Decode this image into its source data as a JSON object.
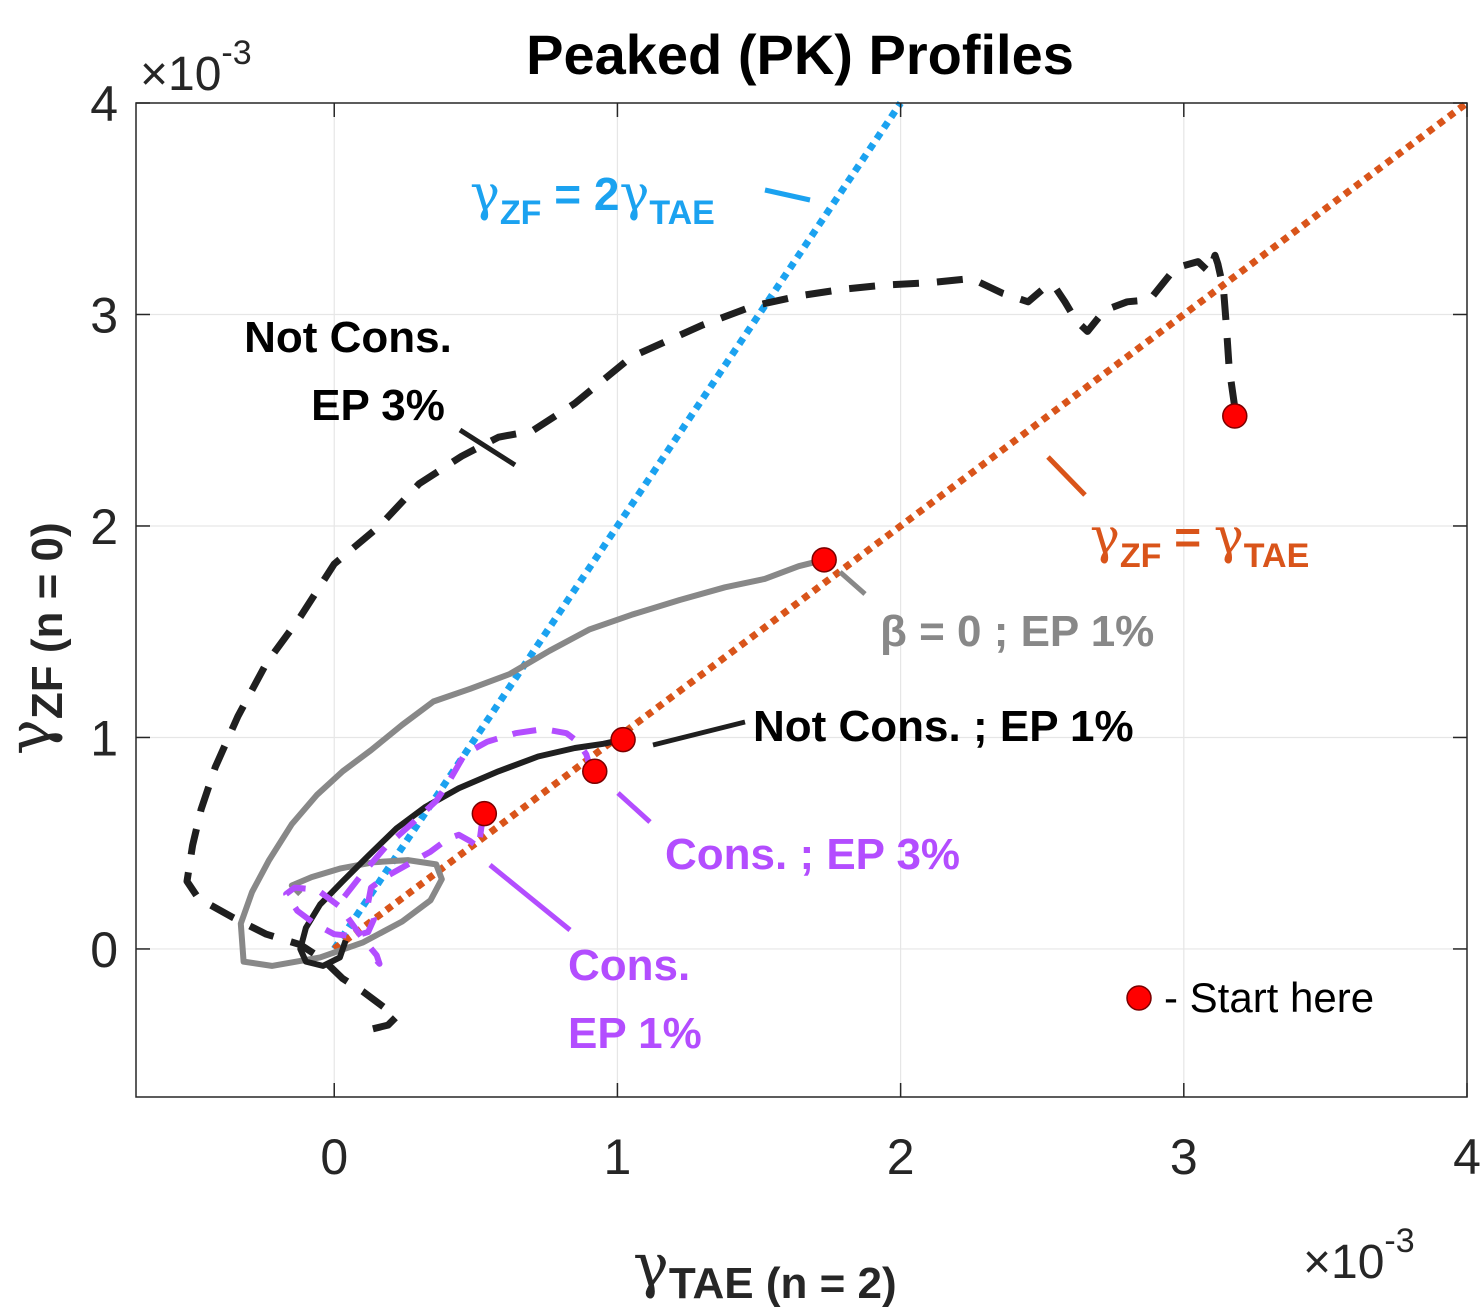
{
  "chart_data": {
    "type": "line",
    "title": "Peaked (PK) Profiles",
    "xlabel": {
      "symbol": "γ",
      "sub": "TAE (n = 2)"
    },
    "ylabel": {
      "symbol": "γ",
      "sub": "ZF (n = 0)"
    },
    "xlim": [
      -0.7,
      4
    ],
    "ylim": [
      -0.7,
      4
    ],
    "x_ticks": [
      0,
      1,
      2,
      3,
      4
    ],
    "y_ticks": [
      0,
      1,
      2,
      3,
      4
    ],
    "x_tick_labels": [
      "0",
      "1",
      "2",
      "3",
      "4"
    ],
    "y_tick_labels": [
      "0",
      "1",
      "2",
      "3",
      "4"
    ],
    "x_multiplier": {
      "times": "×10",
      "exp": "-3"
    },
    "y_multiplier": {
      "times": "×10",
      "exp": "-3"
    },
    "grid": true,
    "colors": {
      "blue_ref": "#1ba2f0",
      "orange_ref": "#d9541a",
      "black": "#1f1f1f",
      "gray": "#888888",
      "purple": "#b34dff",
      "start_marker": "#ff0000"
    },
    "reference_lines": [
      {
        "name": "γ_ZF = 2γ_TAE",
        "slope": 2,
        "x": [
          0,
          2
        ]
      },
      {
        "name": "γ_ZF = γ_TAE",
        "slope": 1,
        "x": [
          0,
          4
        ]
      }
    ],
    "series": [
      {
        "name": "Not Cons. EP 3%",
        "style": "dashed",
        "x": [
          3.18,
          3.16,
          3.15,
          3.14,
          3.12,
          3.11,
          3.09,
          3.05,
          2.97,
          2.88,
          2.8,
          2.72,
          2.66,
          2.62,
          2.58,
          2.55,
          2.52,
          2.45,
          2.36,
          2.25,
          2.1,
          1.95,
          1.8,
          1.65,
          1.48,
          1.3,
          1.05,
          0.85,
          0.7,
          0.58,
          0.45,
          0.3,
          0.16,
          0.0,
          -0.12,
          -0.24,
          -0.34,
          -0.42,
          -0.47,
          -0.5,
          -0.52,
          -0.48,
          -0.36,
          -0.24,
          -0.12,
          -0.04,
          0.03,
          0.1,
          0.16,
          0.2,
          0.22,
          0.19,
          0.13
        ],
        "y": [
          2.56,
          2.75,
          2.95,
          3.12,
          3.24,
          3.28,
          3.2,
          3.25,
          3.22,
          3.07,
          3.06,
          3.02,
          2.92,
          2.97,
          3.06,
          3.12,
          3.14,
          3.06,
          3.1,
          3.17,
          3.15,
          3.14,
          3.12,
          3.09,
          3.04,
          2.95,
          2.8,
          2.58,
          2.45,
          2.42,
          2.33,
          2.2,
          2.0,
          1.82,
          1.57,
          1.35,
          1.1,
          0.86,
          0.66,
          0.49,
          0.32,
          0.24,
          0.15,
          0.07,
          0.02,
          -0.05,
          -0.14,
          -0.2,
          -0.26,
          -0.3,
          -0.32,
          -0.36,
          -0.38
        ]
      },
      {
        "name": "β = 0 ; EP 1%",
        "style": "solid",
        "x": [
          1.73,
          1.64,
          1.52,
          1.38,
          1.22,
          1.05,
          0.9,
          0.76,
          0.62,
          0.48,
          0.35,
          0.24,
          0.13,
          0.03,
          -0.06,
          -0.15,
          -0.23,
          -0.29,
          -0.33,
          -0.32,
          -0.22,
          -0.05,
          0.1,
          0.24,
          0.34,
          0.38,
          0.36,
          0.26,
          0.14,
          0.02,
          -0.08,
          -0.15,
          -0.12
        ],
        "y": [
          1.84,
          1.81,
          1.75,
          1.71,
          1.65,
          1.58,
          1.51,
          1.41,
          1.3,
          1.23,
          1.17,
          1.06,
          0.94,
          0.84,
          0.73,
          0.59,
          0.42,
          0.27,
          0.12,
          -0.06,
          -0.08,
          -0.04,
          0.03,
          0.13,
          0.23,
          0.33,
          0.4,
          0.42,
          0.41,
          0.38,
          0.34,
          0.3,
          0.26
        ]
      },
      {
        "name": "Not Cons. ; EP 1%",
        "style": "solid",
        "x": [
          1.02,
          0.95,
          0.85,
          0.72,
          0.58,
          0.44,
          0.32,
          0.22,
          0.12,
          0.03,
          -0.05,
          -0.1,
          -0.12,
          -0.1,
          -0.04,
          0.02,
          0.04
        ],
        "y": [
          0.99,
          0.97,
          0.95,
          0.91,
          0.84,
          0.76,
          0.67,
          0.57,
          0.44,
          0.32,
          0.21,
          0.1,
          0.0,
          -0.06,
          -0.08,
          -0.04,
          0.04
        ]
      },
      {
        "name": "Cons. ; EP 3%",
        "style": "dashed",
        "x": [
          0.91,
          0.89,
          0.86,
          0.82,
          0.74,
          0.64,
          0.54,
          0.46,
          0.43,
          0.4,
          0.36,
          0.28,
          0.18,
          0.09,
          0.02
        ],
        "y": [
          0.83,
          0.92,
          0.98,
          1.02,
          1.04,
          1.02,
          0.98,
          0.92,
          0.85,
          0.78,
          0.7,
          0.6,
          0.48,
          0.34,
          0.22
        ]
      },
      {
        "name": "Cons. EP 1%",
        "style": "dashed",
        "x": [
          0.53,
          0.52,
          0.51,
          0.48,
          0.44,
          0.4,
          0.34,
          0.26,
          0.18,
          0.13,
          0.12,
          0.14,
          0.12,
          0.07,
          0.0,
          -0.07,
          -0.13,
          -0.17,
          -0.14,
          -0.06,
          0.02,
          0.1,
          0.15,
          0.16,
          0.14
        ],
        "y": [
          0.63,
          0.58,
          0.48,
          0.51,
          0.54,
          0.52,
          0.46,
          0.4,
          0.34,
          0.29,
          0.22,
          0.14,
          0.08,
          0.06,
          0.07,
          0.12,
          0.18,
          0.26,
          0.29,
          0.28,
          0.2,
          0.05,
          -0.03,
          -0.07,
          -0.04
        ]
      }
    ],
    "start_points": [
      {
        "x": 3.18,
        "y": 2.52
      },
      {
        "x": 1.73,
        "y": 1.84
      },
      {
        "x": 1.02,
        "y": 0.99
      },
      {
        "x": 0.92,
        "y": 0.84
      },
      {
        "x": 0.53,
        "y": 0.64
      }
    ],
    "annotations": [
      {
        "id": "not-cons-ep3-line1",
        "text": "Not Cons."
      },
      {
        "id": "not-cons-ep3-line2",
        "text": "EP 3%"
      },
      {
        "id": "beta0-ep1",
        "text": "β = 0 ; EP 1%"
      },
      {
        "id": "not-cons-ep1",
        "text": "Not Cons. ; EP 1%"
      },
      {
        "id": "cons-ep3",
        "text": "Cons. ; EP 3%"
      },
      {
        "id": "cons-ep1-line1",
        "text": "Cons."
      },
      {
        "id": "cons-ep1-line2",
        "text": "EP 1%"
      }
    ],
    "ref_labels": {
      "blue": {
        "symbol": "γ",
        "sub1": "ZF",
        "mid": " = 2",
        "symbol2": "γ",
        "sub2": "TAE"
      },
      "orange": {
        "symbol": "γ",
        "sub1": "ZF",
        "mid": " = ",
        "symbol2": "γ",
        "sub2": "TAE"
      }
    },
    "legend": {
      "text": "- Start here",
      "placement": "bottom-right"
    }
  }
}
